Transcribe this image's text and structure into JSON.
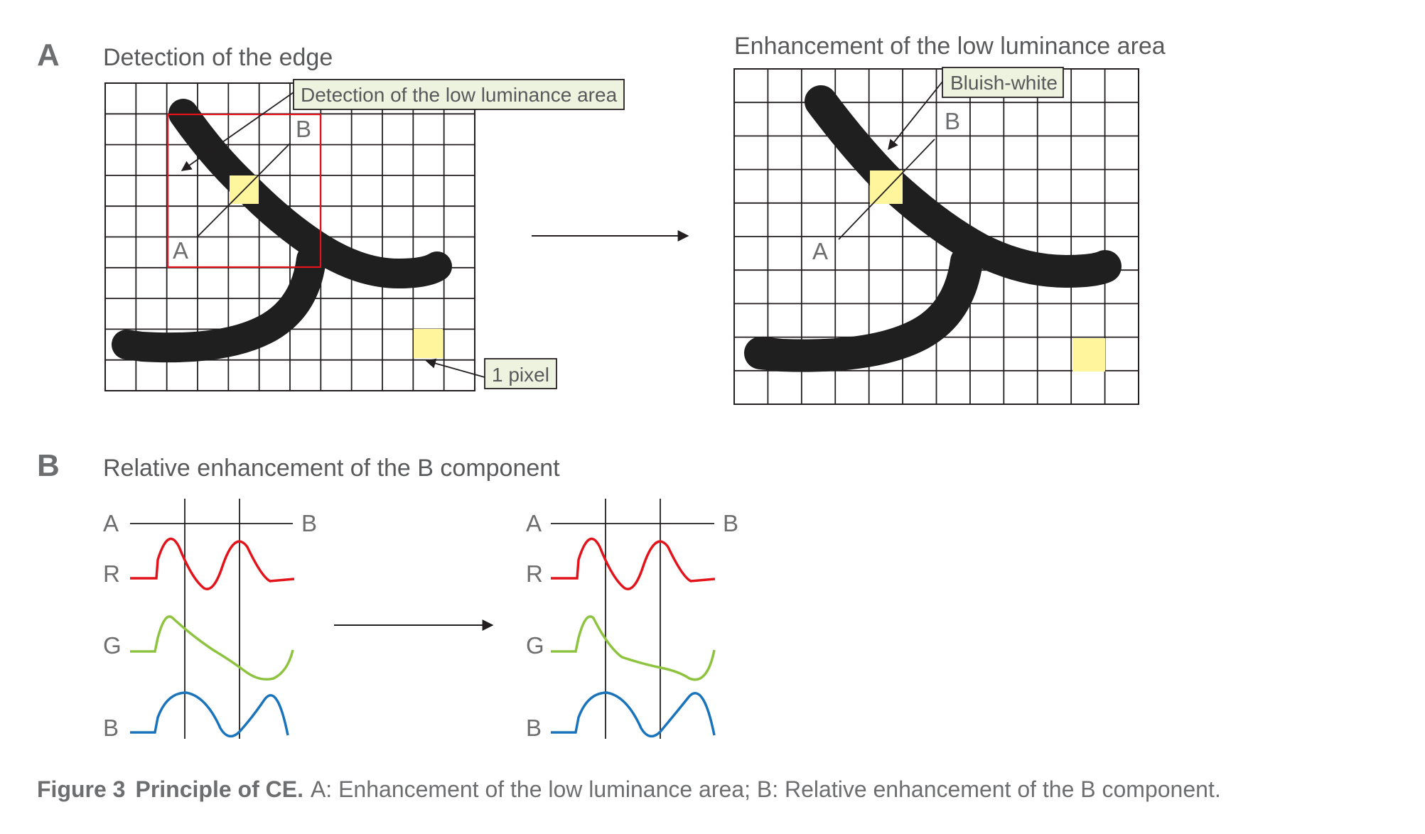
{
  "panel_a": {
    "letter": "A",
    "left_title": "Detection of the edge",
    "right_title": "Enhancement of the low luminance area",
    "callout_detection": "Detection of the low luminance area",
    "callout_pixel": "1 pixel",
    "callout_bluish": "Bluish-white",
    "point_a": "A",
    "point_b": "B"
  },
  "panel_b": {
    "letter": "B",
    "title": "Relative enhancement of the B component",
    "axis_start": "A",
    "axis_end": "B",
    "channels": [
      "R",
      "G",
      "B"
    ]
  },
  "colors": {
    "red_channel": "#e2131a",
    "green_channel": "#8dc33f",
    "blue_channel": "#1a74bb",
    "highlight_pixel": "#fff59d",
    "callout_fill": "#eef3e0",
    "detection_box": "#e2131a"
  },
  "caption": {
    "figure": "Figure 3",
    "title": "Principle of CE.",
    "text": "A: Enhancement of the low luminance area; B: Relative enhancement of the B component."
  }
}
